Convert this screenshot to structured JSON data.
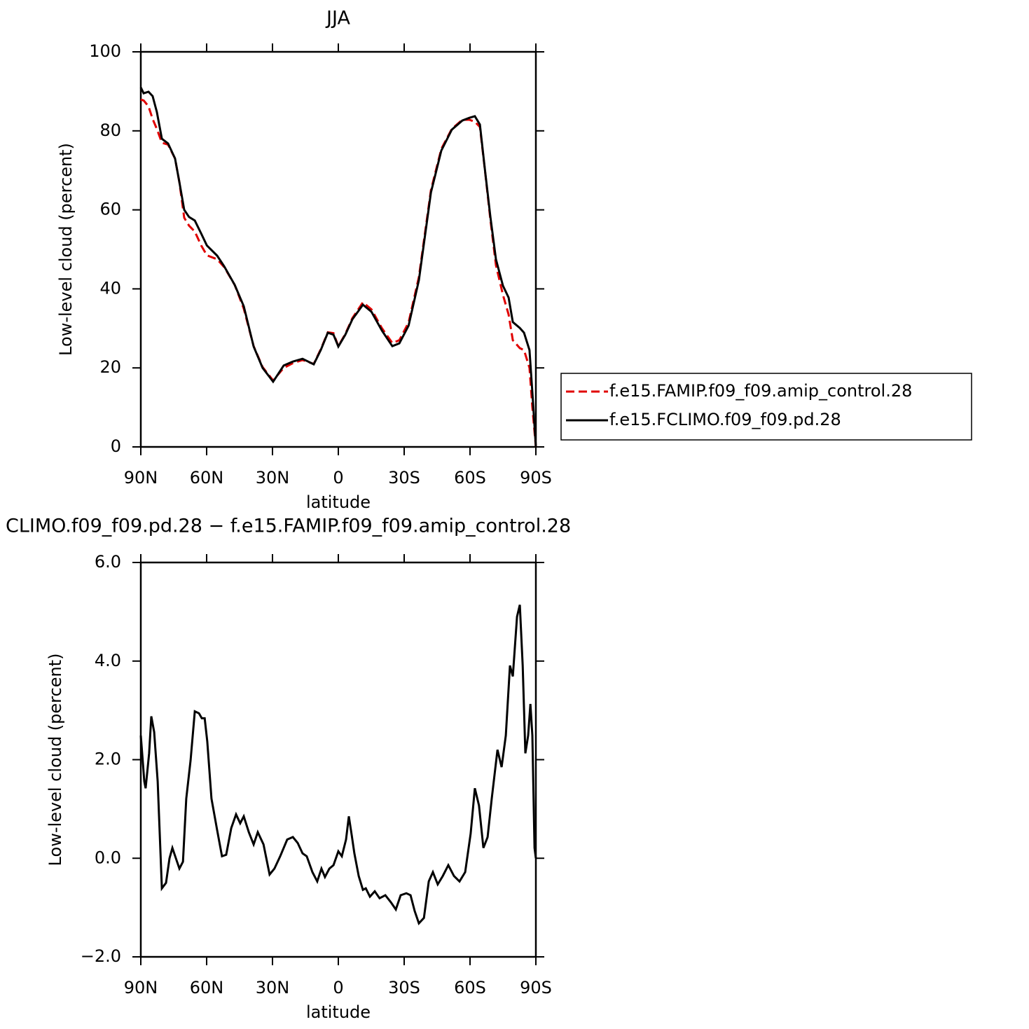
{
  "chart_data": [
    {
      "type": "line",
      "title": "JJA",
      "xlabel": "latitude",
      "ylabel": "Low-level cloud (percent)",
      "xlim": [
        90,
        -90
      ],
      "ylim": [
        0,
        100
      ],
      "xticks": [
        {
          "value": 90,
          "label": "90N"
        },
        {
          "value": 60,
          "label": "60N"
        },
        {
          "value": 30,
          "label": "30N"
        },
        0,
        {
          "value": -30,
          "label": "30S"
        },
        {
          "value": -60,
          "label": "60S"
        },
        {
          "value": -90,
          "label": "90S"
        }
      ],
      "yticks": [
        0,
        20,
        40,
        60,
        80,
        100
      ],
      "legend": "outside-right",
      "x": [
        90,
        88.7,
        86.5,
        84.6,
        82.7,
        80.4,
        77.6,
        74.4,
        72.4,
        70.2,
        68,
        65.4,
        62.5,
        59.9,
        55.2,
        52,
        47.2,
        43.1,
        38.6,
        34.5,
        29.7,
        24.9,
        20.7,
        16.3,
        11.2,
        8,
        4.8,
        2.2,
        0,
        -3.2,
        -6.4,
        -11.2,
        -15.1,
        -19.9,
        -24.6,
        -27.8,
        -32,
        -36.7,
        -42.2,
        -46.9,
        -51.7,
        -56.5,
        -59.7,
        -62.2,
        -64.5,
        -66.7,
        -69.3,
        -71.8,
        -75,
        -77.6,
        -79.5,
        -82.7,
        -84.6,
        -87.1,
        -88.4,
        -90
      ],
      "series": [
        {
          "name": "f.e15.FAMIP.f09_f09.amip_control.28",
          "color": "#e00000",
          "linestyle": "dashed",
          "values": [
            87.9,
            87.7,
            86.2,
            83,
            80.5,
            77,
            76.5,
            73,
            67,
            58,
            56,
            54.5,
            51,
            48.5,
            47.5,
            45.5,
            41,
            35,
            25.5,
            20.2,
            16.8,
            20,
            21.2,
            22,
            21,
            24.7,
            29,
            28.8,
            25.5,
            28.6,
            32.6,
            36.6,
            34.8,
            30,
            26.3,
            27,
            31.5,
            43,
            65,
            75.4,
            80.5,
            82.8,
            82.8,
            82.3,
            81,
            70.5,
            57.5,
            46,
            38.5,
            33.5,
            27,
            25,
            24.5,
            20,
            10,
            0
          ]
        },
        {
          "name": "f.e15.FCLIMO.f09_f09.pd.28",
          "color": "#000000",
          "linestyle": "solid",
          "values": [
            91,
            89.5,
            89.9,
            88.8,
            84.8,
            78,
            76.8,
            73,
            67,
            60,
            58.2,
            57.3,
            54,
            51,
            48.4,
            45.7,
            41,
            35.6,
            25.4,
            20,
            16.5,
            20.6,
            21.6,
            22.3,
            20.9,
            24.5,
            28.9,
            28.4,
            25.4,
            28.4,
            32.3,
            36,
            34.2,
            29.4,
            25.5,
            26.2,
            30.7,
            42.2,
            64.4,
            75,
            80.3,
            82.6,
            83.3,
            83.7,
            81.6,
            70.6,
            58.2,
            47.5,
            40.8,
            37.8,
            31.6,
            30.1,
            28.9,
            24.5,
            13.8,
            0
          ]
        }
      ]
    },
    {
      "type": "line",
      "title": "CLIMO.f09_f09.pd.28 − f.e15.FAMIP.f09_f09.amip_control.28",
      "xlabel": "latitude",
      "ylabel": "Low-level cloud (percent)",
      "xlim": [
        90,
        -90
      ],
      "ylim": [
        -2,
        6
      ],
      "xticks": [
        {
          "value": 90,
          "label": "90N"
        },
        {
          "value": 60,
          "label": "60N"
        },
        {
          "value": 30,
          "label": "30N"
        },
        0,
        {
          "value": -30,
          "label": "30S"
        },
        {
          "value": -60,
          "label": "60S"
        },
        {
          "value": -90,
          "label": "90S"
        }
      ],
      "yticks": [
        {
          "value": -2,
          "label": "−2.0"
        },
        {
          "value": 0,
          "label": "0.0"
        },
        {
          "value": 2,
          "label": "2.0"
        },
        {
          "value": 4,
          "label": "4.0"
        },
        {
          "value": 6,
          "label": "6.0"
        }
      ],
      "x": [
        90,
        88.4,
        87.8,
        86.2,
        85.2,
        83.9,
        82.3,
        80.4,
        78.5,
        76.9,
        75.6,
        74,
        72.4,
        70.8,
        69.3,
        67.3,
        65.4,
        63.5,
        62.2,
        60.9,
        59.7,
        57.8,
        55.2,
        53,
        51.1,
        48.8,
        46.6,
        44.7,
        43.1,
        40.8,
        38.6,
        36.7,
        34.1,
        31.3,
        29.1,
        26.5,
        23.3,
        20.7,
        18.5,
        16.3,
        14.4,
        11.8,
        9.6,
        7.7,
        6.1,
        4.1,
        2.2,
        0,
        -1.6,
        -3.5,
        -4.8,
        -6.1,
        -7.3,
        -9.3,
        -11.2,
        -12.5,
        -14.4,
        -16.6,
        -18.8,
        -21.4,
        -23.9,
        -26.2,
        -28.4,
        -31,
        -32.9,
        -34.8,
        -36.7,
        -39,
        -41.2,
        -43.1,
        -45.3,
        -47.6,
        -50.1,
        -52.7,
        -55.2,
        -57.8,
        -60.3,
        -62.2,
        -64.1,
        -66.1,
        -68,
        -69.9,
        -72.5,
        -74.4,
        -76.3,
        -78.2,
        -79.5,
        -81.4,
        -82.7,
        -84,
        -85.2,
        -86.5,
        -87.5,
        -88.4,
        -89.4,
        -90
      ],
      "series": [
        {
          "color": "#000000",
          "linestyle": "solid",
          "values": [
            2.49,
            1.56,
            1.42,
            2.13,
            2.88,
            2.56,
            1.56,
            -0.61,
            -0.5,
            0,
            0.21,
            0,
            -0.21,
            -0.07,
            1.21,
            1.99,
            2.98,
            2.94,
            2.84,
            2.84,
            2.37,
            1.21,
            0.57,
            0.04,
            0.07,
            0.61,
            0.89,
            0.71,
            0.85,
            0.53,
            0.28,
            0.53,
            0.28,
            -0.33,
            -0.21,
            0.04,
            0.38,
            0.43,
            0.31,
            0.1,
            0.04,
            -0.28,
            -0.47,
            -0.21,
            -0.38,
            -0.21,
            -0.14,
            0.14,
            0.04,
            0.38,
            0.85,
            0.47,
            0.1,
            -0.36,
            -0.64,
            -0.61,
            -0.78,
            -0.67,
            -0.81,
            -0.75,
            -0.89,
            -1.04,
            -0.75,
            -0.71,
            -0.75,
            -1.07,
            -1.32,
            -1.21,
            -0.47,
            -0.28,
            -0.53,
            -0.36,
            -0.14,
            -0.36,
            -0.47,
            -0.28,
            0.5,
            1.42,
            1.07,
            0.21,
            0.43,
            1.21,
            2.2,
            1.85,
            2.49,
            3.91,
            3.69,
            4.9,
            5.14,
            3.91,
            2.13,
            2.49,
            3.13,
            2.49,
            0.21,
            0
          ]
        }
      ]
    }
  ]
}
